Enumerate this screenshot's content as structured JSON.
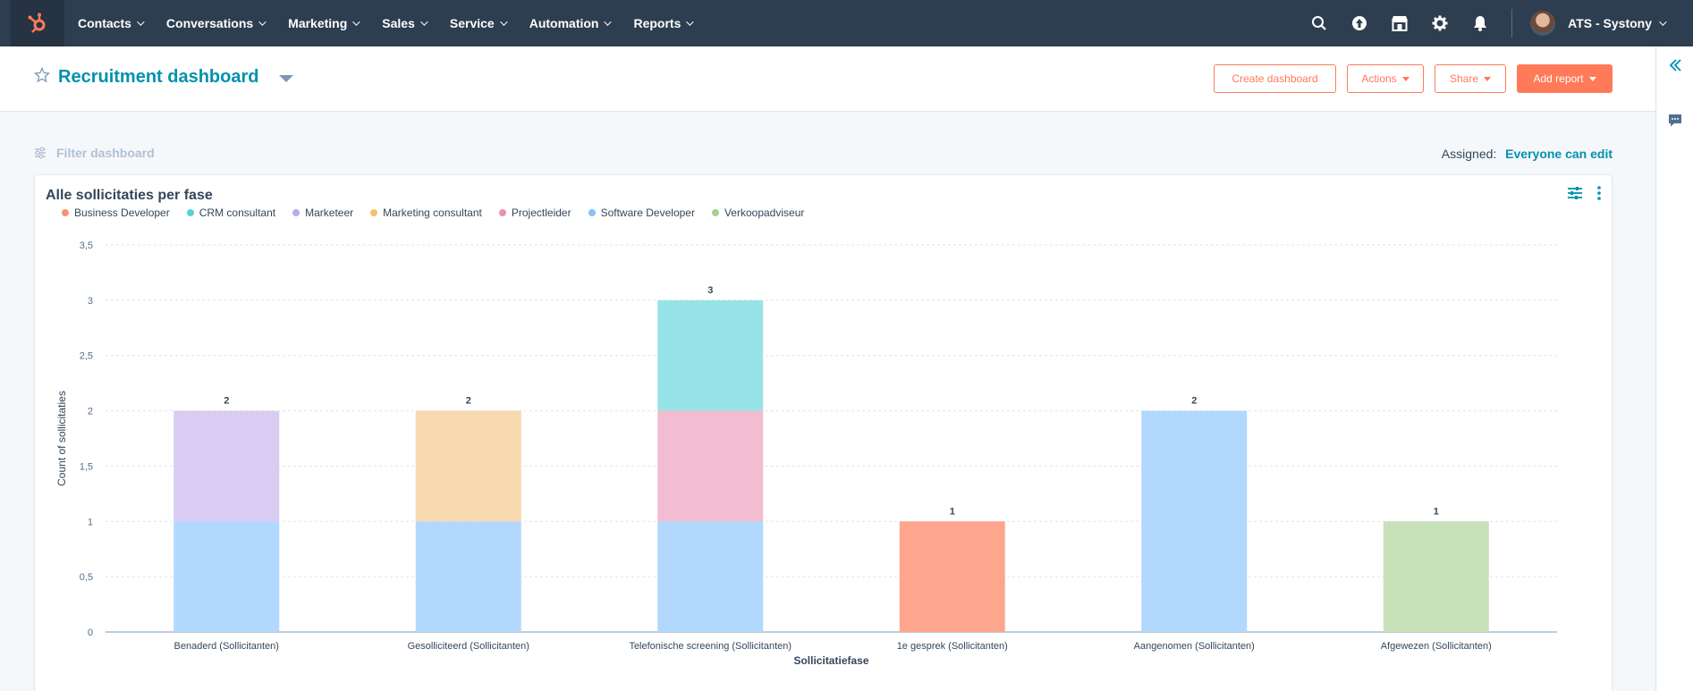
{
  "topnav": {
    "logo_icon": "hubspot-sprocket-icon",
    "items": [
      {
        "label": "Contacts"
      },
      {
        "label": "Conversations"
      },
      {
        "label": "Marketing"
      },
      {
        "label": "Sales"
      },
      {
        "label": "Service"
      },
      {
        "label": "Automation"
      },
      {
        "label": "Reports"
      }
    ],
    "icons": [
      "search-icon",
      "upgrade-icon",
      "marketplace-icon",
      "settings-icon",
      "notifications-icon"
    ],
    "account_name": "ATS - Systony"
  },
  "header": {
    "title": "Recruitment dashboard",
    "create_label": "Create dashboard",
    "actions_label": "Actions",
    "share_label": "Share",
    "add_report_label": "Add report"
  },
  "filter": {
    "label": "Filter dashboard",
    "assigned_label": "Assigned:",
    "assigned_value": "Everyone can edit"
  },
  "colors": {
    "accent": "#ff7a59",
    "link": "#0091ae",
    "nav": "#2d3e50"
  },
  "report": {
    "title": "Alle sollicitaties per fase",
    "chart_data": {
      "type": "bar",
      "stacked": true,
      "xlabel": "Sollicitatiefase",
      "ylabel": "Count of sollicitaties",
      "ylim": [
        0,
        3.5
      ],
      "yticks": [
        "0",
        "0,5",
        "1",
        "1,5",
        "2",
        "2,5",
        "3",
        "3,5"
      ],
      "categories": [
        "Benaderd (Sollicitanten)",
        "Gesolliciteerd (Sollicitanten)",
        "Telefonische screening (Sollicitanten)",
        "1e gesprek (Sollicitanten)",
        "Aangenomen (Sollicitanten)",
        "Afgewezen (Sollicitanten)"
      ],
      "totals": [
        "2",
        "2",
        "3",
        "1",
        "2",
        "1"
      ],
      "series": [
        {
          "name": "Business Developer",
          "color": "#ff8f73",
          "bar_color": "#fea58e",
          "values": [
            0,
            0,
            0,
            1,
            0,
            0
          ]
        },
        {
          "name": "CRM consultant",
          "color": "#51d3d9",
          "bar_color": "#97e4e8",
          "values": [
            0,
            0,
            1,
            0,
            0,
            0
          ]
        },
        {
          "name": "Marketeer",
          "color": "#bda9ea",
          "bar_color": "#d9ccf2",
          "values": [
            1,
            0,
            0,
            0,
            0,
            0
          ]
        },
        {
          "name": "Marketing consultant",
          "color": "#f5c26b",
          "bar_color": "#f8d9b0",
          "values": [
            0,
            1,
            0,
            0,
            0,
            0
          ]
        },
        {
          "name": "Projectleider",
          "color": "#ea90b1",
          "bar_color": "#f2bdd0",
          "values": [
            0,
            0,
            1,
            0,
            0,
            0
          ]
        },
        {
          "name": "Software Developer",
          "color": "#81c1fd",
          "bar_color": "#b2d8fd",
          "values": [
            1,
            1,
            1,
            0,
            2,
            0
          ]
        },
        {
          "name": "Verkoopadviseur",
          "color": "#a2d28f",
          "bar_color": "#c7e2bb",
          "values": [
            0,
            0,
            0,
            0,
            0,
            1
          ]
        }
      ],
      "stack_order": [
        "Software Developer",
        "Business Developer",
        "Verkoopadviseur",
        "Marketeer",
        "Marketing consultant",
        "Projectleider",
        "CRM consultant"
      ],
      "grid": true,
      "legend_position": "top-left"
    }
  }
}
